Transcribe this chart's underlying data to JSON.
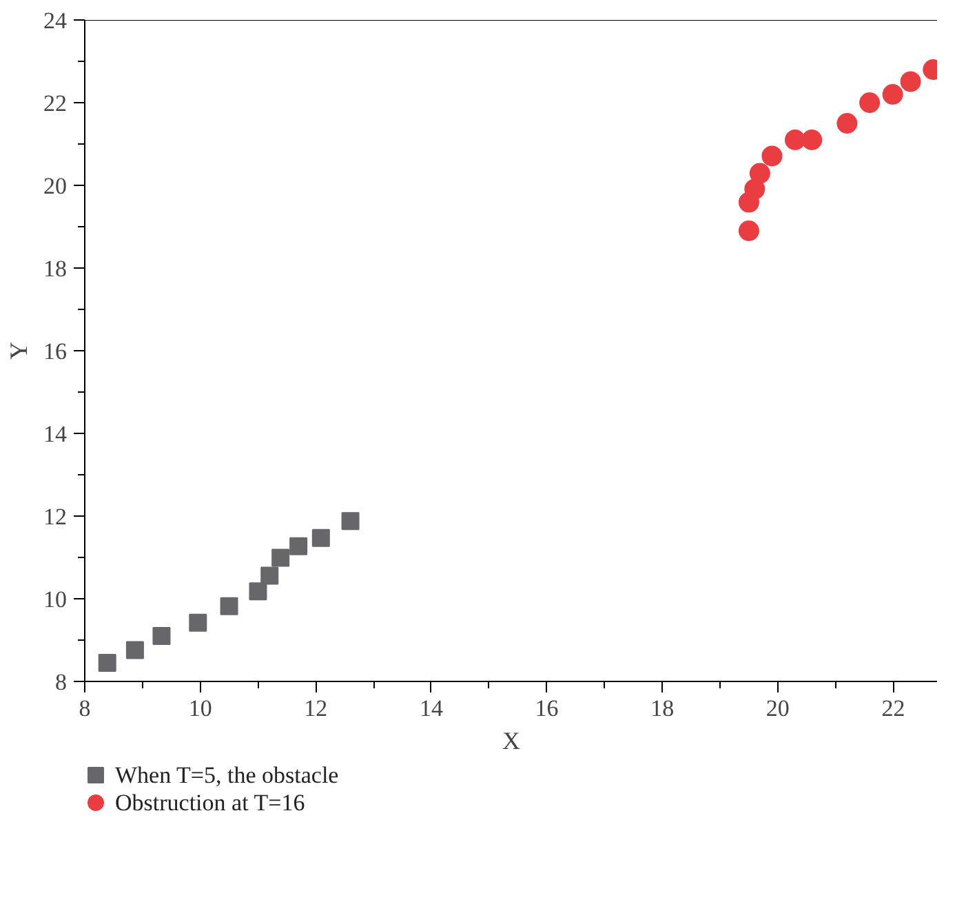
{
  "chart_data": {
    "type": "scatter",
    "xlabel": "X",
    "ylabel": "Y",
    "xlim": [
      8,
      22.77
    ],
    "ylim": [
      8,
      24
    ],
    "xticks": [
      8,
      10,
      12,
      14,
      16,
      18,
      20,
      22
    ],
    "yticks": [
      8,
      10,
      12,
      14,
      16,
      18,
      20,
      22,
      24
    ],
    "grid": false,
    "legend": "bottom left",
    "series": [
      {
        "name": "When T=5, the obstacle",
        "color": "#67676b",
        "marker": "square",
        "x": [
          8.39,
          8.87,
          9.33,
          9.96,
          10.5,
          11.0,
          11.2,
          11.39,
          11.7,
          12.09,
          12.6
        ],
        "values": [
          8.45,
          8.76,
          9.1,
          9.42,
          9.82,
          10.18,
          10.56,
          10.99,
          11.27,
          11.47,
          11.88
        ]
      },
      {
        "name": "Obstruction at T=16",
        "color": "#ea3d42",
        "marker": "circle",
        "x": [
          19.5,
          19.5,
          19.6,
          19.69,
          19.9,
          20.3,
          20.59,
          21.2,
          21.59,
          21.99,
          22.3,
          22.69
        ],
        "values": [
          18.9,
          19.59,
          19.91,
          20.29,
          20.71,
          21.1,
          21.1,
          21.5,
          22.0,
          22.2,
          22.51,
          22.8
        ]
      }
    ]
  }
}
